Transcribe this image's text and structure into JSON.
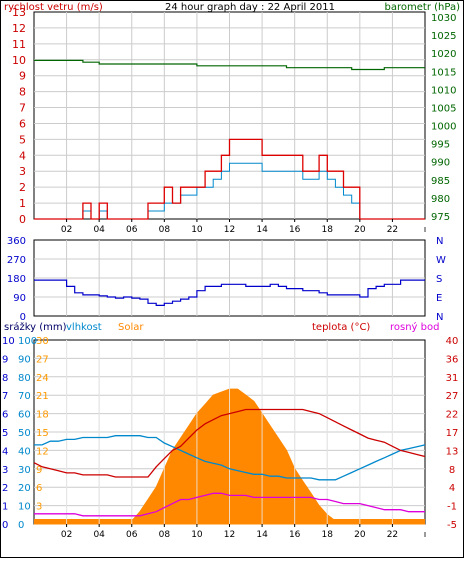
{
  "chart_data": [
    {
      "type": "line",
      "title": "24 hour graph day : 22 April 2011",
      "hours": [
        0,
        0.5,
        1,
        1.5,
        2,
        2.5,
        3,
        3.5,
        4,
        4.5,
        5,
        5.5,
        6,
        6.5,
        7,
        7.5,
        8,
        8.5,
        9,
        9.5,
        10,
        10.5,
        11,
        11.5,
        12,
        12.5,
        13,
        13.5,
        14,
        14.5,
        15,
        15.5,
        16,
        16.5,
        17,
        17.5,
        18,
        18.5,
        19,
        19.5,
        20,
        20.5,
        21,
        21.5,
        22,
        22.5,
        23,
        23.5,
        24
      ],
      "y_left_label": "rychlost vetru (m/s)",
      "y_left_ticks": [
        0,
        1,
        2,
        3,
        4,
        5,
        6,
        7,
        8,
        9,
        10,
        11,
        12,
        13
      ],
      "y_right_label": "barometr (hPa)",
      "y_right_ticks": [
        975,
        980,
        985,
        990,
        995,
        1000,
        1005,
        1010,
        1015,
        1020,
        1025,
        1030
      ],
      "x_ticks": [
        "02",
        "04",
        "06",
        "08",
        "10",
        "12",
        "14",
        "16",
        "18",
        "20",
        "22"
      ],
      "series": [
        {
          "name": "",
          "color": "#dd0000",
          "axis": "left",
          "values": [
            0,
            0,
            0,
            0,
            0,
            0,
            1,
            0,
            1,
            0,
            0,
            0,
            0,
            0,
            1,
            1,
            2,
            1,
            2,
            2,
            2,
            3,
            3,
            4,
            5,
            5,
            5,
            5,
            4,
            4,
            4,
            4,
            4,
            3,
            3,
            4,
            3,
            3,
            2,
            2,
            0,
            0,
            0,
            0,
            0,
            0,
            0,
            0,
            0
          ]
        },
        {
          "name": "",
          "color": "#0088cc",
          "axis": "left",
          "values": [
            0,
            0,
            0,
            0,
            0,
            0,
            0.5,
            0,
            0.5,
            0,
            0,
            0,
            0,
            0,
            0.5,
            0.5,
            1,
            1,
            1.5,
            1.5,
            2,
            2,
            2.5,
            3,
            3.5,
            3.5,
            3.5,
            3.5,
            3,
            3,
            3,
            3,
            3,
            2.5,
            2.5,
            3,
            2.5,
            2,
            1.5,
            1,
            0,
            0,
            0,
            0,
            0,
            0,
            0,
            0,
            0
          ]
        },
        {
          "name": "",
          "color": "#006600",
          "axis": "right",
          "values": [
            1018,
            1018,
            1018,
            1018,
            1018,
            1018,
            1017.5,
            1017.5,
            1017,
            1017,
            1017,
            1017,
            1017,
            1017,
            1017,
            1017,
            1017,
            1017,
            1017,
            1017,
            1016.5,
            1016.5,
            1016.5,
            1016.5,
            1016.5,
            1016.5,
            1016.5,
            1016.5,
            1016.5,
            1016.5,
            1016.5,
            1016,
            1016,
            1016,
            1016,
            1016,
            1016,
            1016,
            1016,
            1015.5,
            1015.5,
            1015.5,
            1015.5,
            1016,
            1016,
            1016,
            1016,
            1016,
            1016
          ]
        }
      ]
    },
    {
      "type": "line",
      "y_left_ticks": [
        0,
        90,
        180,
        270,
        360
      ],
      "y_right_ticks": [
        "N",
        "E",
        "S",
        "W",
        "N"
      ],
      "series": [
        {
          "name": "",
          "color": "#0000cc",
          "values": [
            170,
            170,
            170,
            170,
            140,
            110,
            100,
            100,
            95,
            90,
            85,
            90,
            85,
            80,
            60,
            50,
            60,
            70,
            80,
            90,
            120,
            140,
            140,
            150,
            150,
            150,
            140,
            140,
            140,
            150,
            140,
            130,
            130,
            120,
            120,
            110,
            100,
            100,
            100,
            100,
            90,
            130,
            140,
            150,
            150,
            170,
            170,
            170,
            170
          ]
        }
      ]
    },
    {
      "type": "area",
      "legend": [
        "srážky (mm)",
        "vlhkost",
        "Solar",
        "teplota (°C)",
        "rosný bod"
      ],
      "y_axes": [
        {
          "label": "srážky (mm)",
          "ticks": [
            0,
            1,
            2,
            3,
            4,
            5,
            6,
            7,
            8,
            9,
            10
          ],
          "color": "#0000cc"
        },
        {
          "label": "vlhkost",
          "ticks": [
            0,
            10,
            20,
            30,
            40,
            50,
            60,
            70,
            80,
            90,
            100
          ],
          "color": "#0088cc"
        },
        {
          "label": "Solar",
          "ticks": [
            0,
            3,
            6,
            9,
            12,
            15,
            18,
            21,
            24,
            27,
            30
          ],
          "color": "#ff9900"
        },
        {
          "label": "teplota (°C)",
          "ticks": [
            -5,
            -1,
            4,
            8,
            13,
            17,
            22,
            27,
            31,
            36,
            40
          ],
          "color": "#cc0000"
        },
        {
          "label": "rosný bod",
          "ticks": [
            -5,
            -1,
            4,
            8,
            13,
            17,
            22,
            27,
            31,
            36,
            40
          ],
          "color": "#cc0000"
        }
      ],
      "series": [
        {
          "name": "Solar",
          "color": "#ff8800",
          "values": [
            0,
            0,
            0,
            0,
            0,
            0,
            0,
            0,
            0,
            0,
            0,
            0,
            0.5,
            2,
            4,
            6,
            9,
            12,
            14,
            16,
            18,
            19.5,
            21,
            21.5,
            22,
            22,
            21,
            20,
            18,
            16,
            14,
            12,
            9,
            7,
            5,
            3,
            1.5,
            0.5,
            0,
            0,
            0,
            0,
            0,
            0,
            0,
            0,
            0,
            0,
            0
          ]
        },
        {
          "name": "vlhkost",
          "color": "#0088cc",
          "values": [
            43,
            43,
            45,
            45,
            46,
            46,
            47,
            47,
            47,
            47,
            48,
            48,
            48,
            48,
            47,
            47,
            44,
            42,
            40,
            38,
            36,
            34,
            33,
            32,
            30,
            29,
            28,
            27,
            27,
            26,
            26,
            25,
            25,
            25,
            25,
            24,
            24,
            24,
            26,
            28,
            30,
            32,
            34,
            36,
            38,
            40,
            41,
            42,
            43
          ]
        },
        {
          "name": "teplota (°C)",
          "color": "#cc0000",
          "values": [
            10,
            9,
            8.5,
            8,
            7.5,
            7.5,
            7,
            7,
            7,
            7,
            6.5,
            6.5,
            6.5,
            6.5,
            6.5,
            9,
            11,
            13,
            14,
            16,
            18,
            19.5,
            20.5,
            21.5,
            22,
            22.5,
            23,
            23,
            23,
            23,
            23,
            23,
            23,
            23,
            22.5,
            22,
            21,
            20,
            19,
            18,
            17,
            16,
            15.5,
            15,
            14,
            13,
            12.5,
            12,
            11.5
          ]
        },
        {
          "name": "rosný bod",
          "color": "#dd00dd",
          "values": [
            -2.5,
            -2.5,
            -2.5,
            -2.5,
            -2.5,
            -2.5,
            -3,
            -3,
            -3,
            -3,
            -3,
            -3,
            -3,
            -3,
            -2.5,
            -2,
            -1,
            0,
            1,
            1,
            1.5,
            2,
            2.5,
            2.5,
            2,
            2,
            2,
            1.5,
            1.5,
            1.5,
            1.5,
            1.5,
            1.5,
            1.5,
            1.5,
            1,
            1,
            0.5,
            0,
            0,
            0,
            -0.5,
            -1,
            -1.5,
            -1.5,
            -1.5,
            -2,
            -2,
            -2
          ]
        }
      ]
    }
  ]
}
